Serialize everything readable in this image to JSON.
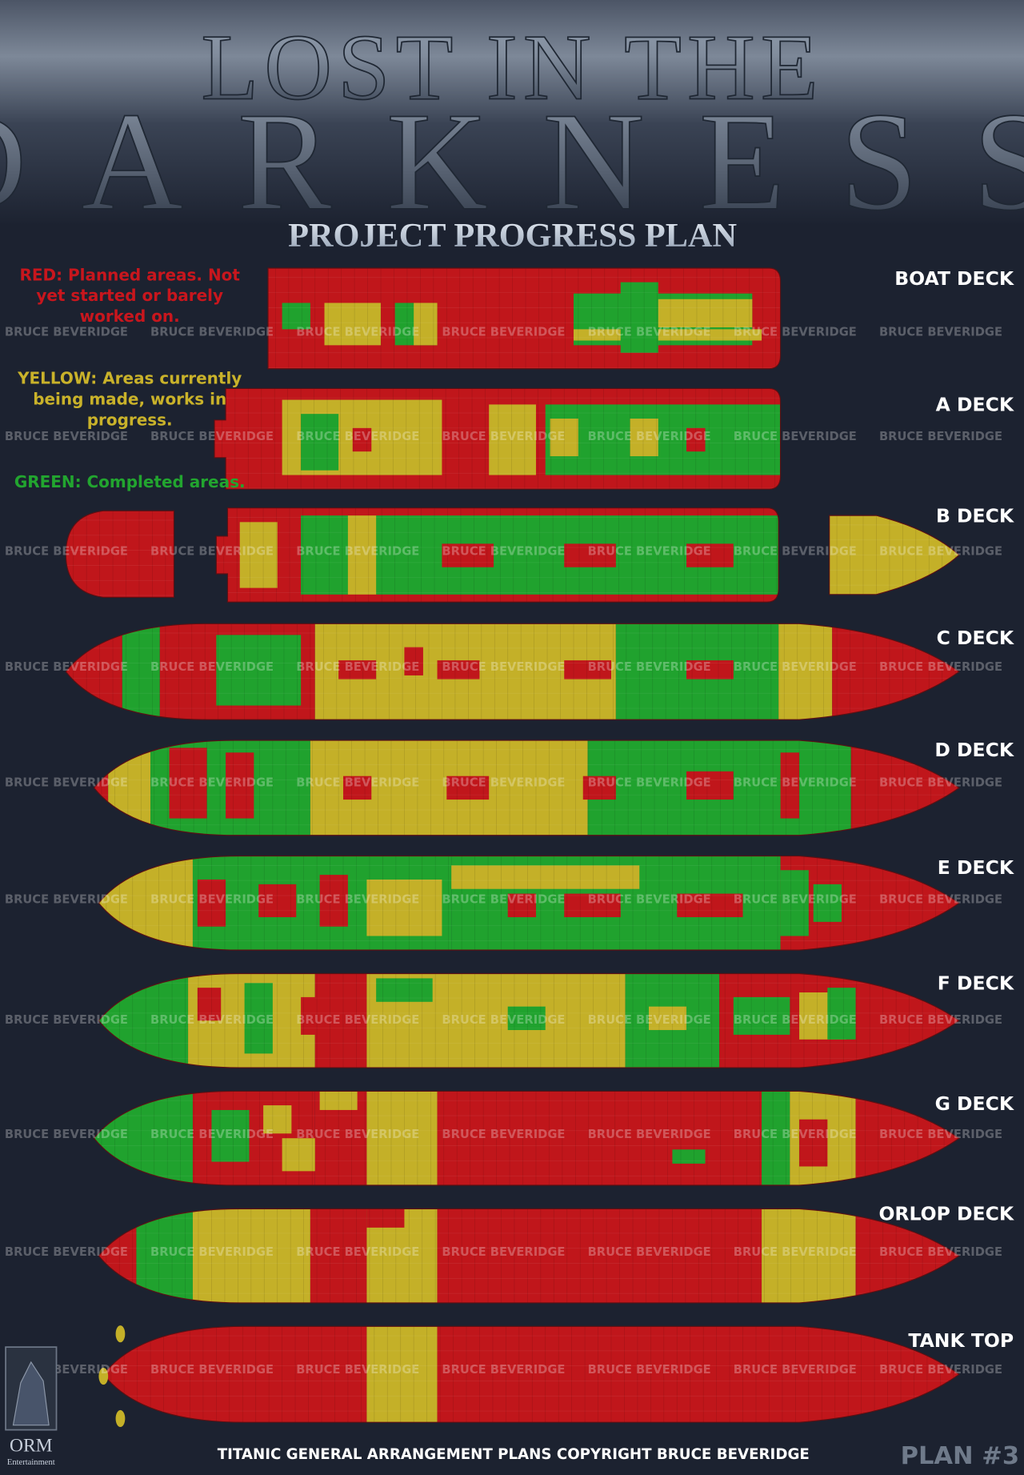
{
  "header": {
    "title_line_1": "LOST IN THE",
    "title_line_2": "DARKNESS",
    "subtitle": "PROJECT PROGRESS PLAN"
  },
  "legend": {
    "red": [
      "RED: Planned areas. Not",
      "yet started or barely",
      "worked on."
    ],
    "yellow": [
      "YELLOW: Areas currently",
      "being made, works in",
      "progress."
    ],
    "green": [
      "GREEN: Completed areas."
    ]
  },
  "decks": [
    "BOAT DECK",
    "A DECK",
    "B DECK",
    "C DECK",
    "D DECK",
    "E DECK",
    "F DECK",
    "G DECK",
    "ORLOP DECK",
    "TANK TOP"
  ],
  "watermark": "BRUCE BEVERIDGE",
  "footer": {
    "copyright": "TITANIC GENERAL ARRANGEMENT PLANS COPYRIGHT BRUCE BEVERIDGE",
    "plan": "PLAN #3"
  },
  "logo": {
    "name": "ORM",
    "tagline": "Entertainment"
  }
}
